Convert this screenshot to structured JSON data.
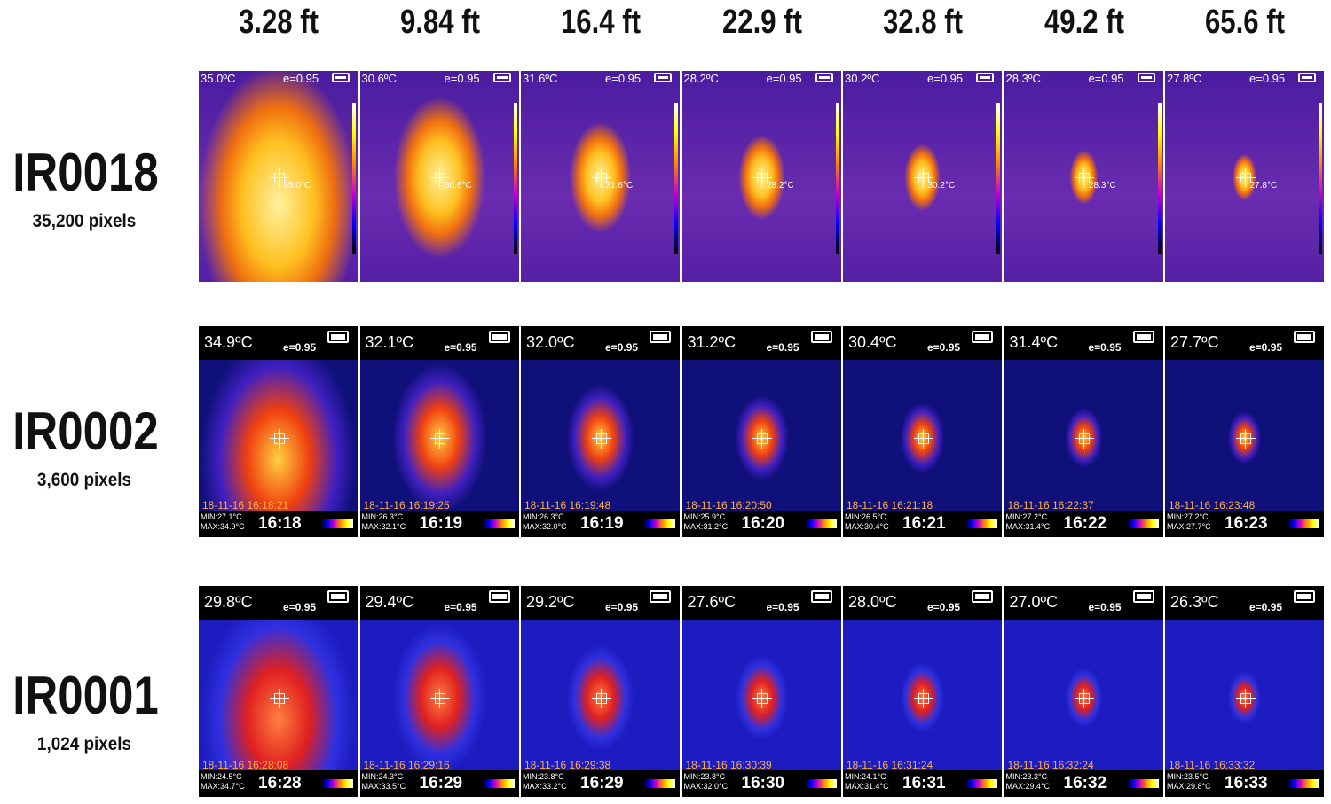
{
  "distances": [
    "3.28 ft",
    "9.84 ft",
    "16.4 ft",
    "22.9 ft",
    "32.8 ft",
    "49.2 ft",
    "65.6 ft"
  ],
  "rows": [
    {
      "model": "IR0018",
      "pixels": "35,200 pixels",
      "tiles": [
        {
          "temp": "35.0ºC",
          "emissivity": "e=0.95",
          "spot": "35.0°C"
        },
        {
          "temp": "30.6ºC",
          "emissivity": "e=0.95",
          "spot": "30.6°C"
        },
        {
          "temp": "31.6ºC",
          "emissivity": "e=0.95",
          "spot": "31.6°C"
        },
        {
          "temp": "28.2ºC",
          "emissivity": "e=0.95",
          "spot": "28.2°C"
        },
        {
          "temp": "30.2ºC",
          "emissivity": "e=0.95",
          "spot": "30.2°C"
        },
        {
          "temp": "28.3ºC",
          "emissivity": "e=0.95",
          "spot": "28.3°C"
        },
        {
          "temp": "27.8ºC",
          "emissivity": "e=0.95",
          "spot": "27.8°C"
        }
      ]
    },
    {
      "model": "IR0002",
      "pixels": "3,600 pixels",
      "tiles": [
        {
          "temp": "34.9ºC",
          "emissivity": "e=0.95",
          "datetime": "18-11-16 16:18:21",
          "min": "MIN:27.1°C",
          "max": "MAX:34.9°C",
          "clock": "16:18"
        },
        {
          "temp": "32.1ºC",
          "emissivity": "e=0.95",
          "datetime": "18-11-16 16:19:25",
          "min": "MIN:26.3°C",
          "max": "MAX:32.1°C",
          "clock": "16:19"
        },
        {
          "temp": "32.0ºC",
          "emissivity": "e=0.95",
          "datetime": "18-11-16 16:19:48",
          "min": "MIN:26.3°C",
          "max": "MAX:32.0°C",
          "clock": "16:19"
        },
        {
          "temp": "31.2ºC",
          "emissivity": "e=0.95",
          "datetime": "18-11-16 16:20:50",
          "min": "MIN:25.9°C",
          "max": "MAX:31.2°C",
          "clock": "16:20"
        },
        {
          "temp": "30.4ºC",
          "emissivity": "e=0.95",
          "datetime": "18-11-16 16:21:18",
          "min": "MIN:26.5°C",
          "max": "MAX:30.4°C",
          "clock": "16:21"
        },
        {
          "temp": "31.4ºC",
          "emissivity": "e=0.95",
          "datetime": "18-11-16 16:22:37",
          "min": "MIN:27.2°C",
          "max": "MAX:31.4°C",
          "clock": "16:22"
        },
        {
          "temp": "27.7ºC",
          "emissivity": "e=0.95",
          "datetime": "18-11-16 16:23:48",
          "min": "MIN:27.2°C",
          "max": "MAX:27.7°C",
          "clock": "16:23"
        }
      ]
    },
    {
      "model": "IR0001",
      "pixels": "1,024 pixels",
      "tiles": [
        {
          "temp": "29.8ºC",
          "emissivity": "e=0.95",
          "datetime": "18-11-16 16:28:08",
          "min": "MIN:24.5°C",
          "max": "MAX:34.7°C",
          "clock": "16:28"
        },
        {
          "temp": "29.4ºC",
          "emissivity": "e=0.95",
          "datetime": "18-11-16 16:29:16",
          "min": "MIN:24.3°C",
          "max": "MAX:33.5°C",
          "clock": "16:29"
        },
        {
          "temp": "29.2ºC",
          "emissivity": "e=0.95",
          "datetime": "18-11-16 16:29:38",
          "min": "MIN:23.8°C",
          "max": "MAX:33.2°C",
          "clock": "16:29"
        },
        {
          "temp": "27.6ºC",
          "emissivity": "e=0.95",
          "datetime": "18-11-16 16:30:39",
          "min": "MIN:23.8°C",
          "max": "MAX:32.0°C",
          "clock": "16:30"
        },
        {
          "temp": "28.0ºC",
          "emissivity": "e=0.95",
          "datetime": "18-11-16 16:31:24",
          "min": "MIN:24.1°C",
          "max": "MAX:31.4°C",
          "clock": "16:31"
        },
        {
          "temp": "27.0ºC",
          "emissivity": "e=0.95",
          "datetime": "18-11-16 16:32:24",
          "min": "MIN:23.3°C",
          "max": "MAX:29.4°C",
          "clock": "16:32"
        },
        {
          "temp": "26.3ºC",
          "emissivity": "e=0.95",
          "datetime": "18-11-16 16:33:32",
          "min": "MIN:23.5°C",
          "max": "MAX:29.8°C",
          "clock": "16:33"
        }
      ]
    }
  ]
}
